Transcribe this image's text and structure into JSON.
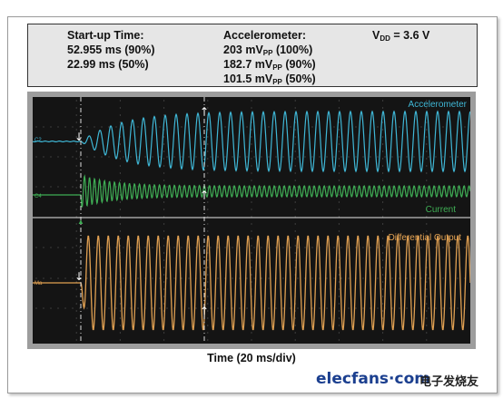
{
  "info": {
    "startup_title": "Start-up Time:",
    "startup_90": "52.955 ms (90%)",
    "startup_50": "22.99 ms (50%)",
    "accel_title": "Accelerometer:",
    "accel_100_value": "203 mV",
    "accel_100_pct": "(100%)",
    "accel_90_value": "182.7 mV",
    "accel_90_pct": "(90%)",
    "accel_50_value": "101.5 mV",
    "accel_50_pct": "(50%)",
    "pp_sub": "PP",
    "vdd_main": "V",
    "vdd_sub": "DD",
    "vdd_value": "= 3.6 V"
  },
  "chart_data": {
    "type": "line",
    "title": "",
    "xlabel": "Time (20 ms/div)",
    "ylabel": "",
    "x_divisions": 10,
    "grid": true,
    "series": [
      {
        "name": "Accelerometer",
        "color": "#3fb7d6",
        "pane": "top"
      },
      {
        "name": "Current",
        "color": "#3fae55",
        "pane": "top"
      },
      {
        "name": "Differential Output",
        "color": "#e0a052",
        "pane": "bottom"
      }
    ],
    "channel_markers": [
      "C2",
      "C4",
      "Ma"
    ]
  },
  "colors": {
    "accelerometer": "#3fb7d6",
    "current": "#3fae55",
    "differential": "#e0a052",
    "screen_bg": "#141414"
  },
  "watermark": {
    "logo": "elecfans·com",
    "cn": "电子发烧友"
  }
}
